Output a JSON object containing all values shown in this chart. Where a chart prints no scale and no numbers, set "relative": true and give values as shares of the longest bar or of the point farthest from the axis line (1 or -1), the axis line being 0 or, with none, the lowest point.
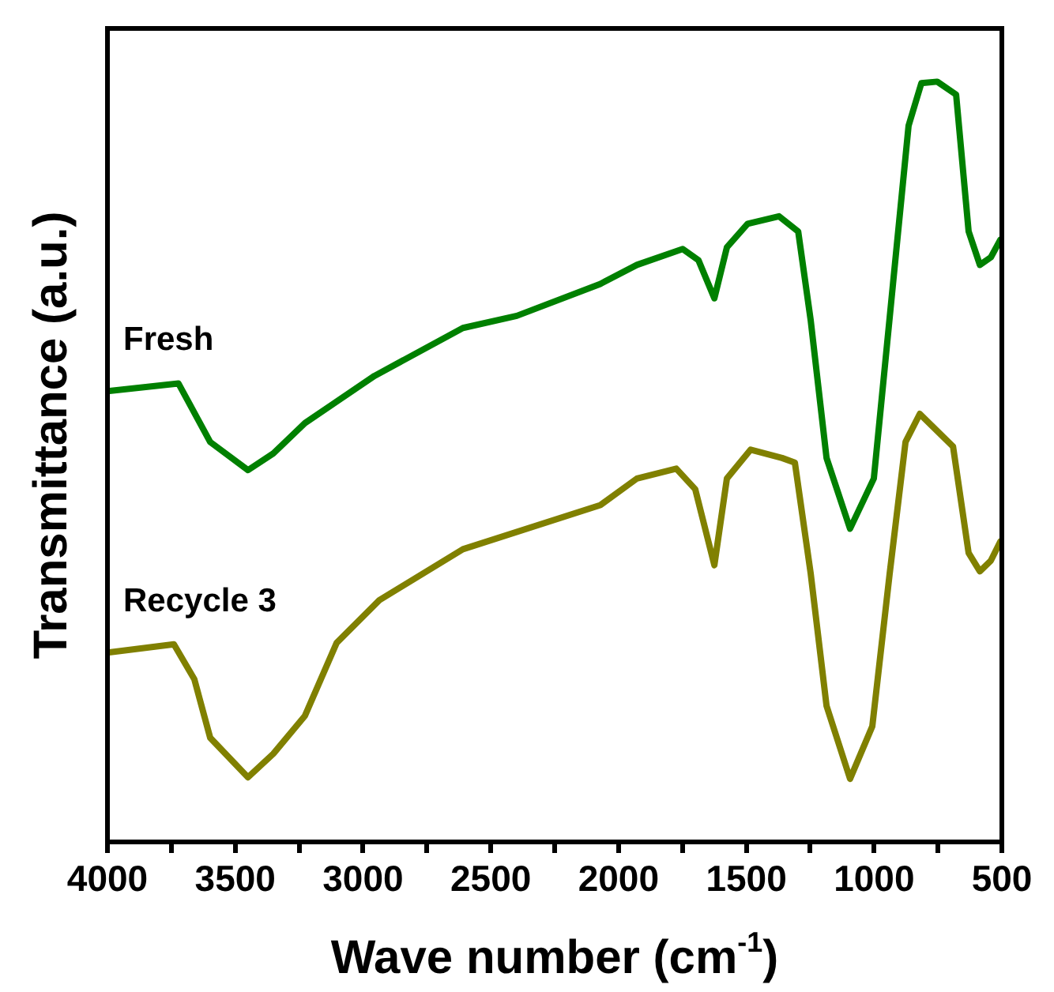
{
  "chart_data": {
    "type": "line",
    "xlabel": "Wave number (cm$^{-1}$)",
    "ylabel": "Transmittance (a.u.)",
    "relative": true,
    "xlim": [
      4000,
      500
    ],
    "xticks": [
      4000,
      {
        "value": 3750,
        "label": null
      },
      3500,
      {
        "value": 3250,
        "label": null
      },
      3000,
      {
        "value": 2750,
        "label": null
      },
      2500,
      {
        "value": 2250,
        "label": null
      },
      2000,
      {
        "value": 1750,
        "label": null
      },
      1500,
      {
        "value": 1250,
        "label": null
      },
      1000,
      {
        "value": 750,
        "label": null
      },
      500
    ],
    "grid": false,
    "legend": false,
    "marker": "none",
    "line_style": "solid",
    "tick_labels": "x",
    "series": [
      {
        "name": "Fresh",
        "color": "#008000",
        "x": [
          4000,
          3722,
          3598,
          3450,
          3351,
          3227,
          2955,
          2609,
          2398,
          2071,
          1928,
          1749,
          1687,
          1625,
          1576,
          1495,
          1372,
          1297,
          1248,
          1186,
          1094,
          1001,
          926,
          865,
          815,
          753,
          679,
          630,
          586,
          543,
          506
        ],
        "values": [
          0.593,
          0.603,
          0.526,
          0.489,
          0.511,
          0.551,
          0.613,
          0.676,
          0.692,
          0.734,
          0.759,
          0.78,
          0.765,
          0.715,
          0.782,
          0.813,
          0.823,
          0.803,
          0.686,
          0.505,
          0.412,
          0.478,
          0.734,
          0.942,
          0.998,
          1,
          0.983,
          0.803,
          0.759,
          0.769,
          0.792
        ]
      },
      {
        "name": "Recycle 3",
        "color": "#808000",
        "x": [
          4000,
          3740,
          3660,
          3598,
          3450,
          3351,
          3227,
          3103,
          2936,
          2609,
          2071,
          1928,
          1774,
          1700,
          1625,
          1576,
          1483,
          1360,
          1310,
          1248,
          1186,
          1094,
          1007,
          939,
          877,
          821,
          691,
          630,
          586,
          543,
          506
        ],
        "values": [
          0.249,
          0.26,
          0.214,
          0.137,
          0.085,
          0.116,
          0.166,
          0.262,
          0.318,
          0.385,
          0.443,
          0.478,
          0.491,
          0.464,
          0.364,
          0.478,
          0.516,
          0.505,
          0.499,
          0.353,
          0.179,
          0.083,
          0.152,
          0.353,
          0.526,
          0.563,
          0.52,
          0.38,
          0.356,
          0.37,
          0.395
        ]
      }
    ]
  }
}
